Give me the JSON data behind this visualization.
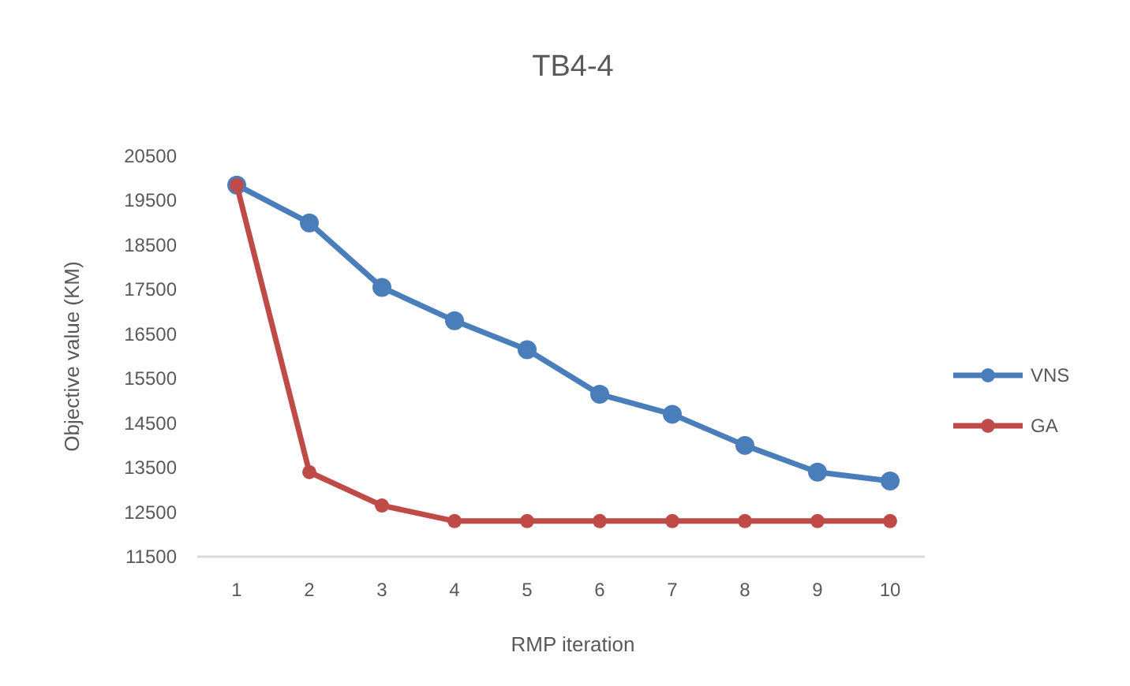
{
  "chart_data": {
    "type": "line",
    "title": "TB4-4",
    "xlabel": "RMP iteration",
    "ylabel": "Objective value (KM)",
    "categories": [
      "1",
      "2",
      "3",
      "4",
      "5",
      "6",
      "7",
      "8",
      "9",
      "10"
    ],
    "series": [
      {
        "name": "VNS",
        "color": "#4a7ebb",
        "values": [
          19850,
          19000,
          17550,
          16800,
          16150,
          15150,
          14700,
          14000,
          13400,
          13200
        ]
      },
      {
        "name": "GA",
        "color": "#be4b48",
        "values": [
          19850,
          13400,
          12650,
          12300,
          12300,
          12300,
          12300,
          12300,
          12300,
          12300
        ]
      }
    ],
    "ylim": [
      11500,
      20500
    ],
    "yticks": [
      11500,
      12500,
      13500,
      14500,
      15500,
      16500,
      17500,
      18500,
      19500,
      20500
    ],
    "grid": false,
    "legend": "right",
    "marker": "circle",
    "line_style": "solid"
  }
}
